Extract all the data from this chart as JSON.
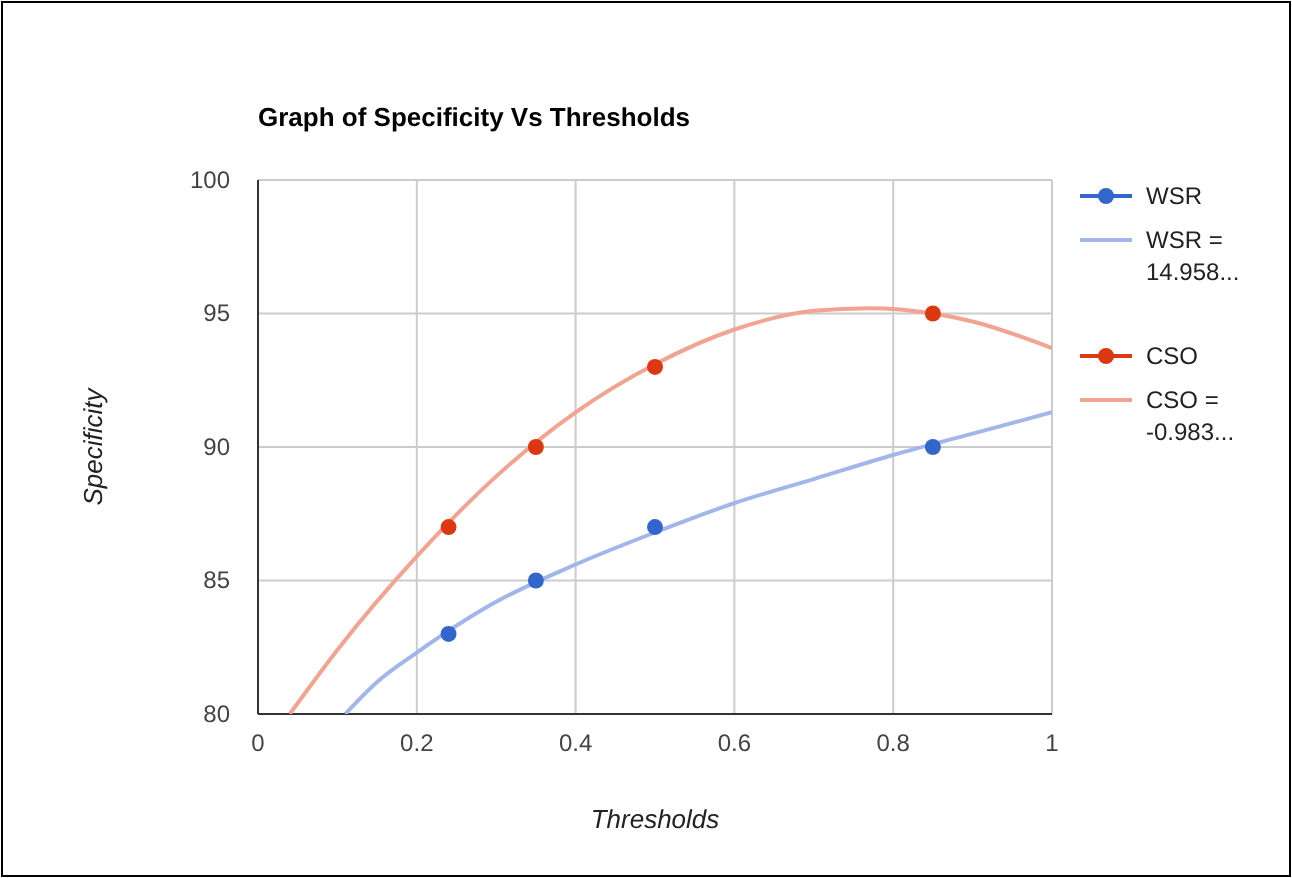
{
  "chart_data": {
    "type": "scatter",
    "title": "Graph of  Specificity Vs Thresholds",
    "xlabel": "Thresholds",
    "ylabel": "Specificity",
    "xlim": [
      0,
      1
    ],
    "xticks": [
      0,
      0.2,
      0.4,
      0.6,
      0.8,
      1
    ],
    "ylim": [
      80,
      100
    ],
    "yticks": [
      80,
      85,
      90,
      95,
      100
    ],
    "grid": true,
    "legend": "right",
    "marker": "circle",
    "series": [
      {
        "name": "WSR",
        "color": "#3366cc",
        "x": [
          0.24,
          0.35,
          0.5,
          0.85
        ],
        "values": [
          83,
          85,
          87,
          90
        ]
      },
      {
        "name": "WSR = 14.958...",
        "type": "line",
        "color": "#a3b6ec",
        "marker": "none",
        "x": [
          0.11,
          0.15,
          0.2,
          0.3,
          0.4,
          0.5,
          0.6,
          0.7,
          0.8,
          0.9,
          1
        ],
        "values": [
          80,
          81.2,
          82.3,
          84.2,
          85.6,
          86.8,
          87.9,
          88.8,
          89.7,
          90.5,
          91.3
        ]
      },
      {
        "name": "CSO",
        "color": "#dc3912",
        "x": [
          0.24,
          0.35,
          0.5,
          0.85
        ],
        "values": [
          87,
          90,
          93,
          95
        ]
      },
      {
        "name": "CSO = -0.983...",
        "type": "line",
        "color": "#f0a491",
        "marker": "none",
        "x": [
          0.04,
          0.1,
          0.2,
          0.3,
          0.4,
          0.5,
          0.6,
          0.7,
          0.77,
          0.85,
          0.9,
          1
        ],
        "values": [
          80,
          82.4,
          85.9,
          88.9,
          91.3,
          93.1,
          94.4,
          95.1,
          95.2,
          95,
          94.7,
          93.7
        ]
      }
    ]
  }
}
